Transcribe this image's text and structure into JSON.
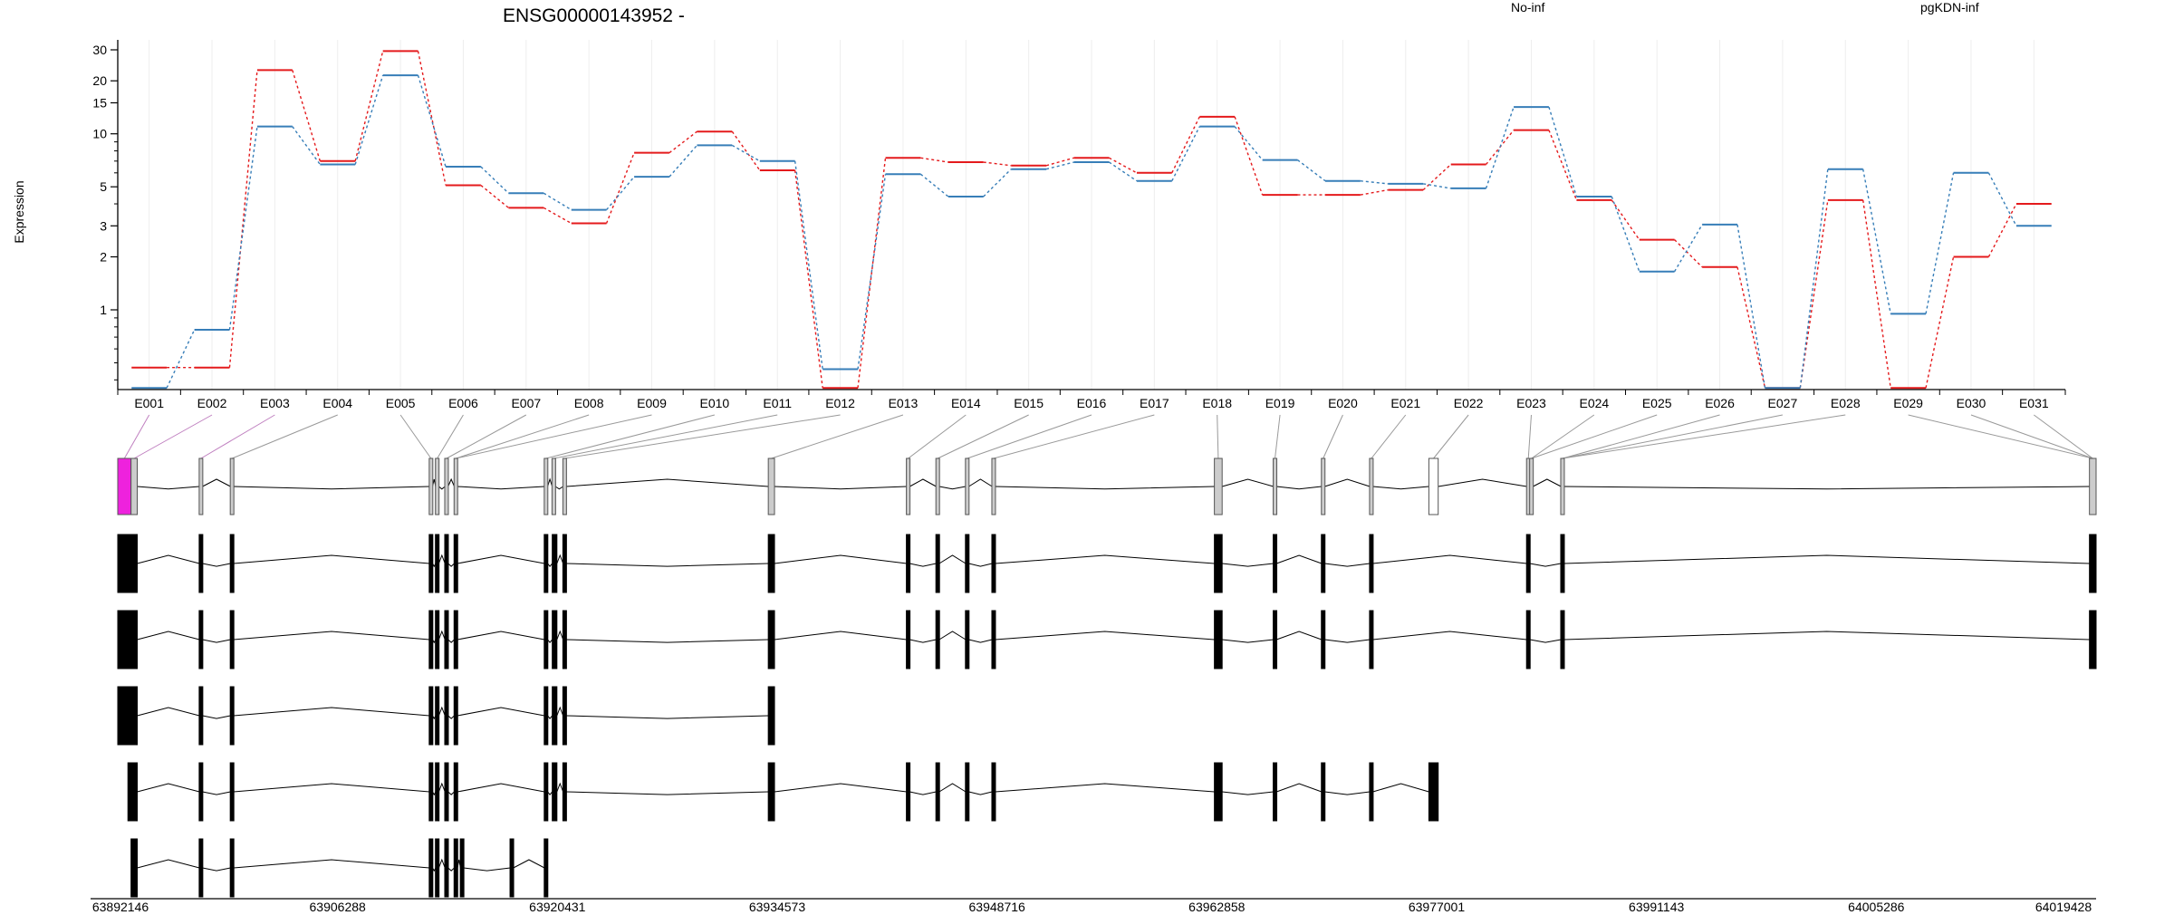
{
  "chart_data": {
    "type": "line",
    "title": "ENSG00000143952 -",
    "ylabel": "Expression",
    "xlabel": "",
    "y_scale": "log",
    "ylim": [
      0.35,
      35
    ],
    "y_ticks": [
      1,
      2,
      3,
      5,
      10,
      15,
      20,
      30
    ],
    "y_tick_labels": [
      "1",
      "2",
      "3",
      "5",
      "10",
      "15",
      "20",
      "30"
    ],
    "grid": "vertical",
    "legend_placement": "top-right",
    "categories": [
      "E001",
      "E002",
      "E003",
      "E004",
      "E005",
      "E006",
      "E007",
      "E008",
      "E009",
      "E010",
      "E011",
      "E012",
      "E013",
      "E014",
      "E015",
      "E016",
      "E017",
      "E018",
      "E019",
      "E020",
      "E021",
      "E022",
      "E023",
      "E024",
      "E025",
      "E026",
      "E027",
      "E028",
      "E029",
      "E030",
      "E031"
    ],
    "series": [
      {
        "name": "No-inf",
        "color": "#e41a1c",
        "values": [
          0.47,
          0.47,
          23,
          7.0,
          29.5,
          5.1,
          3.8,
          3.1,
          7.8,
          10.3,
          6.2,
          0.36,
          7.3,
          6.9,
          6.6,
          7.3,
          6.0,
          12.5,
          4.5,
          4.5,
          4.8,
          6.7,
          10.5,
          4.2,
          2.5,
          1.75,
          0.36,
          4.2,
          0.36,
          2.0,
          4.0
        ]
      },
      {
        "name": "pgKDN-inf",
        "color": "#377eb8",
        "values": [
          0.36,
          0.77,
          11,
          6.7,
          21.5,
          6.5,
          4.6,
          3.7,
          5.7,
          8.6,
          7.0,
          0.46,
          5.9,
          4.4,
          6.3,
          6.9,
          5.4,
          11,
          7.1,
          5.4,
          5.2,
          4.9,
          14.2,
          4.4,
          1.65,
          3.05,
          0.36,
          6.3,
          0.95,
          6.0,
          3.0
        ]
      }
    ]
  },
  "gene_model": {
    "genomic_ticks": [
      "63892146",
      "63906288",
      "63920431",
      "63934573",
      "63948716",
      "63962858",
      "63977001",
      "63991143",
      "64005286",
      "64019428"
    ],
    "coord_range": [
      63892146,
      64019428
    ],
    "highlight_exon": "E001",
    "colors": {
      "highlight": "#ee22dd",
      "exon_track": "#cccccc",
      "transcript": "#000000"
    },
    "exon_bins": [
      [
        63892146,
        63893000
      ],
      [
        63893000,
        63893400
      ],
      [
        63897400,
        63897600
      ],
      [
        63899400,
        63899600
      ],
      [
        63912200,
        63912400
      ],
      [
        63912600,
        63912800
      ],
      [
        63913200,
        63913400
      ],
      [
        63913800,
        63914000
      ],
      [
        63919600,
        63919800
      ],
      [
        63920100,
        63920300
      ],
      [
        63920800,
        63921000
      ],
      [
        63934000,
        63934400
      ],
      [
        63942900,
        63943100
      ],
      [
        63944800,
        63945000
      ],
      [
        63946700,
        63946900
      ],
      [
        63948400,
        63948600
      ],
      [
        63962700,
        63963200
      ],
      [
        63966500,
        63966700
      ],
      [
        63969600,
        63969800
      ],
      [
        63972700,
        63972900
      ],
      [
        63976500,
        63977100
      ],
      [
        63982800,
        63983000
      ],
      [
        63983000,
        63983200
      ],
      [
        63985000,
        63985200
      ],
      [
        64019000,
        64019428
      ]
    ],
    "exon_map": [
      0,
      1,
      2,
      3,
      4,
      5,
      6,
      7,
      7,
      8,
      9,
      10,
      11,
      12,
      13,
      14,
      15,
      16,
      17,
      18,
      19,
      20,
      21,
      22,
      22,
      23,
      23,
      23,
      24,
      24,
      24
    ],
    "transcripts": [
      [
        [
          63892146,
          63893400
        ],
        [
          63897400,
          63897600
        ],
        [
          63899400,
          63899600
        ],
        [
          63912200,
          63912400
        ],
        [
          63912600,
          63912800
        ],
        [
          63913200,
          63913400
        ],
        [
          63913800,
          63914000
        ],
        [
          63919600,
          63919800
        ],
        [
          63920100,
          63920400
        ],
        [
          63920800,
          63921000
        ],
        [
          63934000,
          63934400
        ],
        [
          63942900,
          63943100
        ],
        [
          63944800,
          63945000
        ],
        [
          63946700,
          63946900
        ],
        [
          63948400,
          63948600
        ],
        [
          63962700,
          63963200
        ],
        [
          63966500,
          63966700
        ],
        [
          63969600,
          63969800
        ],
        [
          63972700,
          63972900
        ],
        [
          63982800,
          63983000
        ],
        [
          63985000,
          63985200
        ],
        [
          64019000,
          64019428
        ]
      ],
      [
        [
          63892146,
          63893400
        ],
        [
          63897400,
          63897600
        ],
        [
          63899400,
          63899600
        ],
        [
          63912200,
          63912400
        ],
        [
          63912600,
          63912800
        ],
        [
          63913200,
          63913400
        ],
        [
          63913800,
          63914000
        ],
        [
          63919600,
          63919800
        ],
        [
          63920100,
          63920400
        ],
        [
          63920800,
          63921000
        ],
        [
          63934000,
          63934400
        ],
        [
          63942900,
          63943100
        ],
        [
          63944800,
          63945000
        ],
        [
          63946700,
          63946900
        ],
        [
          63948400,
          63948600
        ],
        [
          63962700,
          63963200
        ],
        [
          63966500,
          63966700
        ],
        [
          63969600,
          63969800
        ],
        [
          63972700,
          63972900
        ],
        [
          63982800,
          63983000
        ],
        [
          63985000,
          63985200
        ],
        [
          64019000,
          64019428
        ]
      ],
      [
        [
          63892146,
          63893400
        ],
        [
          63897400,
          63897600
        ],
        [
          63899400,
          63899600
        ],
        [
          63912200,
          63912400
        ],
        [
          63912600,
          63912800
        ],
        [
          63913200,
          63913400
        ],
        [
          63913800,
          63914000
        ],
        [
          63919600,
          63919800
        ],
        [
          63920100,
          63920400
        ],
        [
          63920800,
          63921000
        ],
        [
          63934000,
          63934400
        ]
      ],
      [
        [
          63892800,
          63893400
        ],
        [
          63897400,
          63897600
        ],
        [
          63899400,
          63899600
        ],
        [
          63912200,
          63912400
        ],
        [
          63912600,
          63912800
        ],
        [
          63913200,
          63913400
        ],
        [
          63913800,
          63914000
        ],
        [
          63919600,
          63919800
        ],
        [
          63920100,
          63920400
        ],
        [
          63920800,
          63921000
        ],
        [
          63934000,
          63934400
        ],
        [
          63942900,
          63943100
        ],
        [
          63944800,
          63945000
        ],
        [
          63946700,
          63946900
        ],
        [
          63948400,
          63948600
        ],
        [
          63962700,
          63963200
        ],
        [
          63966500,
          63966700
        ],
        [
          63969600,
          63969800
        ],
        [
          63972700,
          63972900
        ],
        [
          63976500,
          63977100
        ]
      ],
      [
        [
          63893000,
          63893400
        ],
        [
          63897400,
          63897600
        ],
        [
          63899400,
          63899600
        ],
        [
          63912200,
          63912400
        ],
        [
          63912600,
          63912800
        ],
        [
          63913200,
          63913400
        ],
        [
          63913800,
          63914000
        ],
        [
          63914200,
          63914400
        ],
        [
          63917400,
          63917600
        ],
        [
          63919600,
          63919800
        ]
      ]
    ]
  }
}
